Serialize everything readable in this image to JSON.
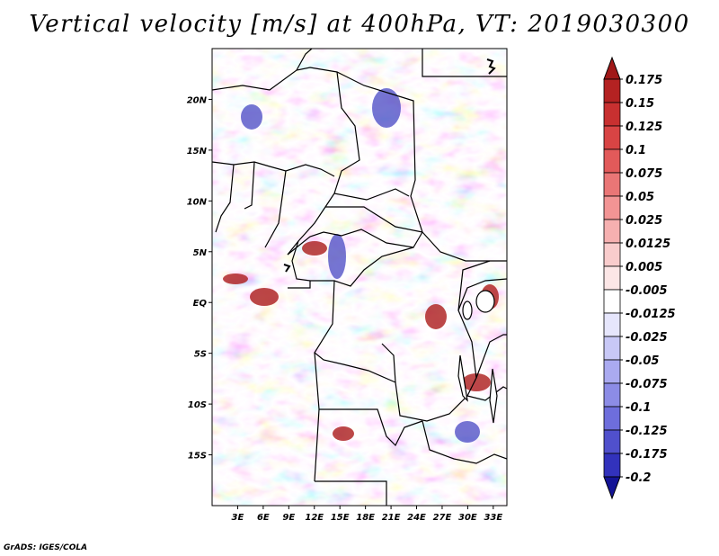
{
  "title": "Vertical velocity [m/s] at 400hPa, VT: 2019030300",
  "footer": "GrADS: IGES/COLA",
  "map": {
    "lon_range": [
      0,
      34.6
    ],
    "lat_range": [
      -20,
      25
    ],
    "lat_ticks": [
      {
        "value": 20,
        "label": "20N"
      },
      {
        "value": 15,
        "label": "15N"
      },
      {
        "value": 10,
        "label": "10N"
      },
      {
        "value": 5,
        "label": "5N"
      },
      {
        "value": 0,
        "label": "EQ"
      },
      {
        "value": -5,
        "label": "5S"
      },
      {
        "value": -10,
        "label": "10S"
      },
      {
        "value": -15,
        "label": "15S"
      }
    ],
    "lon_ticks": [
      {
        "value": 3,
        "label": "3E"
      },
      {
        "value": 6,
        "label": "6E"
      },
      {
        "value": 9,
        "label": "9E"
      },
      {
        "value": 12,
        "label": "12E"
      },
      {
        "value": 15,
        "label": "15E"
      },
      {
        "value": 18,
        "label": "18E"
      },
      {
        "value": 21,
        "label": "21E"
      },
      {
        "value": 24,
        "label": "24E"
      },
      {
        "value": 27,
        "label": "27E"
      },
      {
        "value": 30,
        "label": "30E"
      },
      {
        "value": 33,
        "label": "33E"
      }
    ]
  },
  "colorbar": {
    "levels": [
      {
        "label": "0.175",
        "color": "#b42222"
      },
      {
        "label": "0.15",
        "color": "#c83030"
      },
      {
        "label": "0.125",
        "color": "#d84444"
      },
      {
        "label": "0.1",
        "color": "#e25a5a"
      },
      {
        "label": "0.075",
        "color": "#ea7676"
      },
      {
        "label": "0.05",
        "color": "#f29494"
      },
      {
        "label": "0.025",
        "color": "#f6b0b0"
      },
      {
        "label": "0.0125",
        "color": "#f9cccc"
      },
      {
        "label": "0.005",
        "color": "#fce6e6"
      },
      {
        "label": "-0.005",
        "color": "#ffffff"
      },
      {
        "label": "-0.0125",
        "color": "#e6e6fc"
      },
      {
        "label": "-0.025",
        "color": "#c8c8f6"
      },
      {
        "label": "-0.05",
        "color": "#aaaaf0"
      },
      {
        "label": "-0.075",
        "color": "#8c8ce6"
      },
      {
        "label": "-0.1",
        "color": "#6e6edc"
      },
      {
        "label": "-0.125",
        "color": "#5050cc"
      },
      {
        "label": "-0.175",
        "color": "#3232bc"
      },
      {
        "label": "-0.2",
        "color": "#1e1ea8"
      }
    ],
    "top_triangle_color": "#a01818",
    "bottom_triangle_color": "#141496"
  }
}
